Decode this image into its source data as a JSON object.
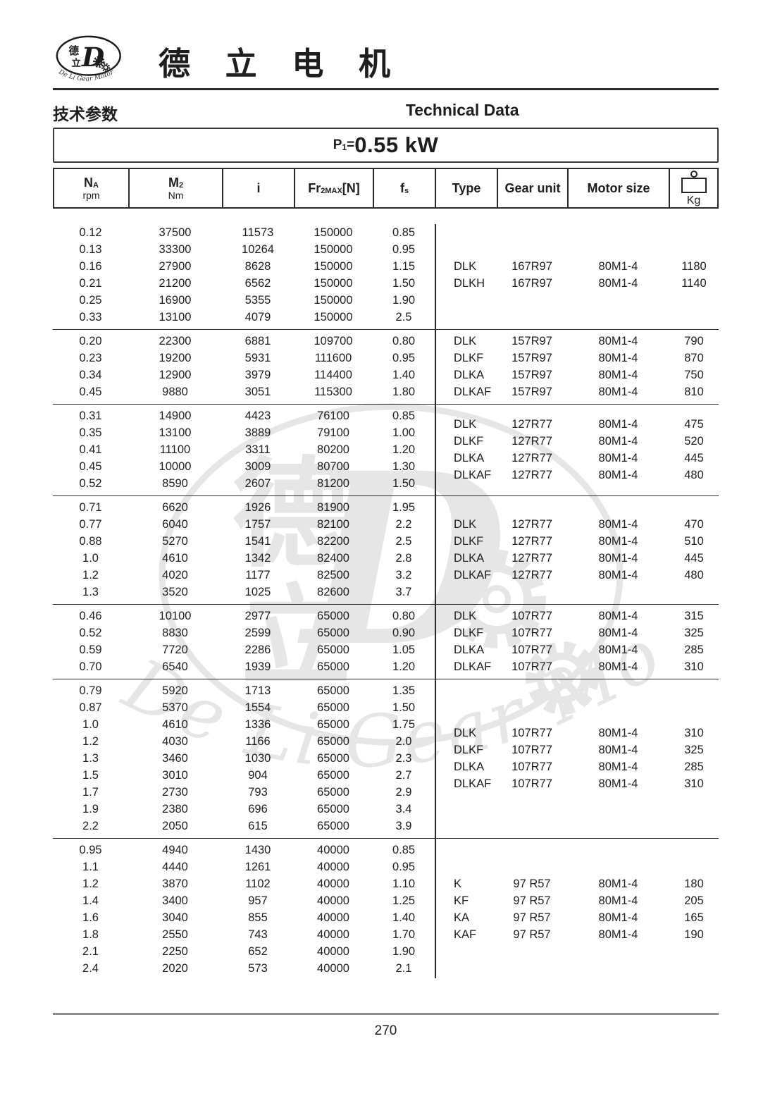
{
  "brand": {
    "name_zh": "德 立 电 机",
    "logo": {
      "zh_top": "德",
      "zh_bottom": "立",
      "monogram": "D",
      "arc_text": "De Li Gear Motor"
    }
  },
  "header": {
    "title_zh": "技术参数",
    "title_en": "Technical Data"
  },
  "power_title": {
    "p": "P",
    "sub": "1",
    "equals": "=",
    "value": "0.55 kW"
  },
  "colors": {
    "ink": "#1e1e1e",
    "rule": "#2b2b2b",
    "footer_rule": "#8c8c8c",
    "watermark": "#555555"
  },
  "table": {
    "columns": [
      {
        "main": "N",
        "sub": "A",
        "unit": "rpm"
      },
      {
        "main": "M",
        "sub": "2",
        "unit": "Nm"
      },
      {
        "main": "i"
      },
      {
        "main": "Fr",
        "sub": "2MAX",
        "after": "[N]"
      },
      {
        "main": "f",
        "sub": "s"
      },
      {
        "main": "Type"
      },
      {
        "main": "Gear unit"
      },
      {
        "main": "Motor size"
      },
      {
        "main": "Kg",
        "icon": "weight-icon"
      }
    ],
    "groups": [
      {
        "rows": [
          [
            "0.12",
            "37500",
            "11573",
            "150000",
            "0.85"
          ],
          [
            "0.13",
            "33300",
            "10264",
            "150000",
            "0.95"
          ],
          [
            "0.16",
            "27900",
            "8628",
            "150000",
            "1.15"
          ],
          [
            "0.21",
            "21200",
            "6562",
            "150000",
            "1.50"
          ],
          [
            "0.25",
            "16900",
            "5355",
            "150000",
            "1.90"
          ],
          [
            "0.33",
            "13100",
            "4079",
            "150000",
            "2.5"
          ]
        ],
        "motors": [
          [
            "DLK",
            "167R97",
            "80M1-4",
            "1180"
          ],
          [
            "DLKH",
            "167R97",
            "80M1-4",
            "1140"
          ]
        ]
      },
      {
        "rows": [
          [
            "0.20",
            "22300",
            "6881",
            "109700",
            "0.80"
          ],
          [
            "0.23",
            "19200",
            "5931",
            "111600",
            "0.95"
          ],
          [
            "0.34",
            "12900",
            "3979",
            "114400",
            "1.40"
          ],
          [
            "0.45",
            "9880",
            "3051",
            "115300",
            "1.80"
          ]
        ],
        "motors": [
          [
            "DLK",
            "157R97",
            "80M1-4",
            "790"
          ],
          [
            "DLKF",
            "157R97",
            "80M1-4",
            "870"
          ],
          [
            "DLKA",
            "157R97",
            "80M1-4",
            "750"
          ],
          [
            "DLKAF",
            "157R97",
            "80M1-4",
            "810"
          ]
        ]
      },
      {
        "rows": [
          [
            "0.31",
            "14900",
            "4423",
            "76100",
            "0.85"
          ],
          [
            "0.35",
            "13100",
            "3889",
            "79100",
            "1.00"
          ],
          [
            "0.41",
            "11100",
            "3311",
            "80200",
            "1.20"
          ],
          [
            "0.45",
            "10000",
            "3009",
            "80700",
            "1.30"
          ],
          [
            "0.52",
            "8590",
            "2607",
            "81200",
            "1.50"
          ]
        ],
        "motors": [
          [
            "DLK",
            "127R77",
            "80M1-4",
            "475"
          ],
          [
            "DLKF",
            "127R77",
            "80M1-4",
            "520"
          ],
          [
            "DLKA",
            "127R77",
            "80M1-4",
            "445"
          ],
          [
            "DLKAF",
            "127R77",
            "80M1-4",
            "480"
          ]
        ]
      },
      {
        "rows": [
          [
            "0.71",
            "6620",
            "1926",
            "81900",
            "1.95"
          ],
          [
            "0.77",
            "6040",
            "1757",
            "82100",
            "2.2"
          ],
          [
            "0.88",
            "5270",
            "1541",
            "82200",
            "2.5"
          ],
          [
            "1.0",
            "4610",
            "1342",
            "82400",
            "2.8"
          ],
          [
            "1.2",
            "4020",
            "1177",
            "82500",
            "3.2"
          ],
          [
            "1.3",
            "3520",
            "1025",
            "82600",
            "3.7"
          ]
        ],
        "motors": [
          [
            "DLK",
            "127R77",
            "80M1-4",
            "470"
          ],
          [
            "DLKF",
            "127R77",
            "80M1-4",
            "510"
          ],
          [
            "DLKA",
            "127R77",
            "80M1-4",
            "445"
          ],
          [
            "DLKAF",
            "127R77",
            "80M1-4",
            "480"
          ]
        ]
      },
      {
        "rows": [
          [
            "0.46",
            "10100",
            "2977",
            "65000",
            "0.80"
          ],
          [
            "0.52",
            "8830",
            "2599",
            "65000",
            "0.90"
          ],
          [
            "0.59",
            "7720",
            "2286",
            "65000",
            "1.05"
          ],
          [
            "0.70",
            "6540",
            "1939",
            "65000",
            "1.20"
          ]
        ],
        "motors": [
          [
            "DLK",
            "107R77",
            "80M1-4",
            "315"
          ],
          [
            "DLKF",
            "107R77",
            "80M1-4",
            "325"
          ],
          [
            "DLKA",
            "107R77",
            "80M1-4",
            "285"
          ],
          [
            "DLKAF",
            "107R77",
            "80M1-4",
            "310"
          ]
        ]
      },
      {
        "rows": [
          [
            "0.79",
            "5920",
            "1713",
            "65000",
            "1.35"
          ],
          [
            "0.87",
            "5370",
            "1554",
            "65000",
            "1.50"
          ],
          [
            "1.0",
            "4610",
            "1336",
            "65000",
            "1.75"
          ],
          [
            "1.2",
            "4030",
            "1166",
            "65000",
            "2.0"
          ],
          [
            "1.3",
            "3460",
            "1030",
            "65000",
            "2.3"
          ],
          [
            "1.5",
            "3010",
            "904",
            "65000",
            "2.7"
          ],
          [
            "1.7",
            "2730",
            "793",
            "65000",
            "2.9"
          ],
          [
            "1.9",
            "2380",
            "696",
            "65000",
            "3.4"
          ],
          [
            "2.2",
            "2050",
            "615",
            "65000",
            "3.9"
          ]
        ],
        "motors": [
          [
            "DLK",
            "107R77",
            "80M1-4",
            "310"
          ],
          [
            "DLKF",
            "107R77",
            "80M1-4",
            "325"
          ],
          [
            "DLKA",
            "107R77",
            "80M1-4",
            "285"
          ],
          [
            "DLKAF",
            "107R77",
            "80M1-4",
            "310"
          ]
        ]
      },
      {
        "rows": [
          [
            "0.95",
            "4940",
            "1430",
            "40000",
            "0.85"
          ],
          [
            "1.1",
            "4440",
            "1261",
            "40000",
            "0.95"
          ],
          [
            "1.2",
            "3870",
            "1102",
            "40000",
            "1.10"
          ],
          [
            "1.4",
            "3400",
            "957",
            "40000",
            "1.25"
          ],
          [
            "1.6",
            "3040",
            "855",
            "40000",
            "1.40"
          ],
          [
            "1.8",
            "2550",
            "743",
            "40000",
            "1.70"
          ],
          [
            "2.1",
            "2250",
            "652",
            "40000",
            "1.90"
          ],
          [
            "2.4",
            "2020",
            "573",
            "40000",
            "2.1"
          ]
        ],
        "motors": [
          [
            "K",
            "97 R57",
            "80M1-4",
            "180"
          ],
          [
            "KF",
            "97 R57",
            "80M1-4",
            "205"
          ],
          [
            "KA",
            "97 R57",
            "80M1-4",
            "165"
          ],
          [
            "KAF",
            "97 R57",
            "80M1-4",
            "190"
          ]
        ]
      }
    ]
  },
  "watermark": {
    "zh_top": "德",
    "zh_bottom": "立",
    "monogram": "D",
    "arc_text": "De Li Gear Motor"
  },
  "footer": {
    "page_number": "270"
  }
}
